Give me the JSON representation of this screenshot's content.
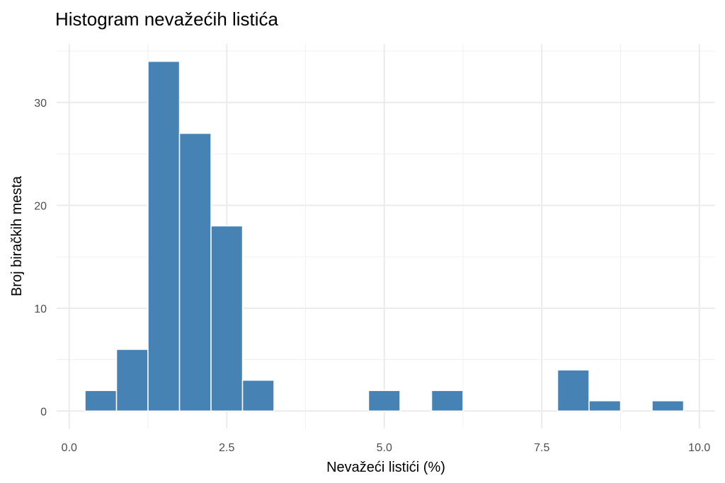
{
  "chart_data": {
    "type": "bar",
    "title": "Histogram nevažećih listića",
    "xlabel": "Nevažeći listići (%)",
    "ylabel": "Broj biračkih mesta",
    "xlim": [
      -0.2,
      10.25
    ],
    "ylim": [
      -1.7,
      35.7
    ],
    "xticks": [
      0,
      2.5,
      5,
      7.5,
      10
    ],
    "xtick_labels": [
      "0.0",
      "2.5",
      "5.0",
      "7.5",
      "10.0"
    ],
    "yticks": [
      0,
      10,
      20,
      30
    ],
    "ytick_labels": [
      "0",
      "10",
      "20",
      "30"
    ],
    "grid": true,
    "bin_width": 0.5,
    "bins": [
      {
        "center": 0.5,
        "count": 2
      },
      {
        "center": 1.0,
        "count": 6
      },
      {
        "center": 1.5,
        "count": 34
      },
      {
        "center": 2.0,
        "count": 27
      },
      {
        "center": 2.5,
        "count": 18
      },
      {
        "center": 3.0,
        "count": 3
      },
      {
        "center": 5.0,
        "count": 2
      },
      {
        "center": 6.0,
        "count": 2
      },
      {
        "center": 8.0,
        "count": 4
      },
      {
        "center": 8.5,
        "count": 1
      },
      {
        "center": 9.5,
        "count": 1
      }
    ],
    "bar_color": "#4682B4"
  }
}
